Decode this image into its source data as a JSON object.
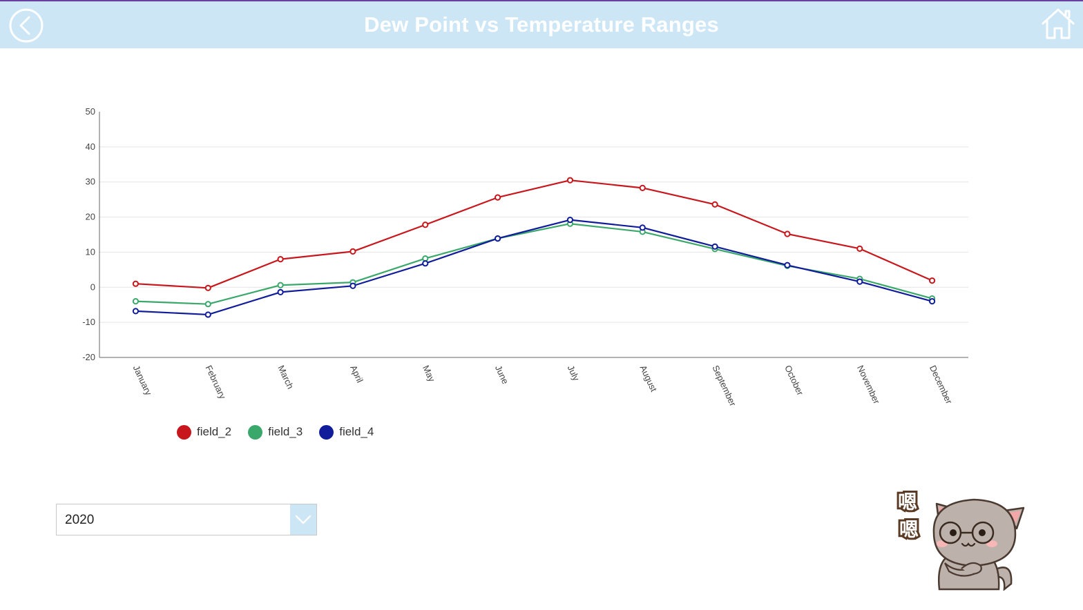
{
  "header": {
    "title": "Dew Point vs Temperature Ranges",
    "back_icon": "back-arrow-circle-icon",
    "home_icon": "home-icon"
  },
  "colors": {
    "header_bg": "#cce6f6",
    "accent_border": "#6b3fa0",
    "field_2": "#c8171c",
    "field_3": "#3aa86b",
    "field_4": "#101c9a"
  },
  "chart_data": {
    "type": "line",
    "title": "",
    "xlabel": "",
    "ylabel": "",
    "categories": [
      "January",
      "February",
      "March",
      "April",
      "May",
      "June",
      "July",
      "August",
      "September",
      "October",
      "November",
      "December"
    ],
    "y_ticks": [
      50,
      40,
      30,
      20,
      10,
      0,
      -10,
      -20
    ],
    "ylim": [
      -20,
      50
    ],
    "grid": true,
    "legend_position": "bottom-left",
    "series": [
      {
        "name": "field_2",
        "color": "#c8171c",
        "values": [
          1.0,
          -0.2,
          8.0,
          10.2,
          17.8,
          25.6,
          30.5,
          28.3,
          23.6,
          15.2,
          11.0,
          1.9
        ]
      },
      {
        "name": "field_3",
        "color": "#3aa86b",
        "values": [
          -4.0,
          -4.8,
          0.6,
          1.4,
          8.2,
          13.9,
          18.1,
          15.8,
          10.9,
          6.1,
          2.4,
          -3.2
        ]
      },
      {
        "name": "field_4",
        "color": "#101c9a",
        "values": [
          -6.8,
          -7.8,
          -1.4,
          0.4,
          6.8,
          13.9,
          19.2,
          17.0,
          11.6,
          6.3,
          1.6,
          -4.0
        ]
      }
    ]
  },
  "year_select": {
    "value": "2020",
    "arrow_icon": "chevron-down-icon"
  },
  "sticker": {
    "icon": "cat-sticker-icon",
    "text": "嗯嗯"
  }
}
